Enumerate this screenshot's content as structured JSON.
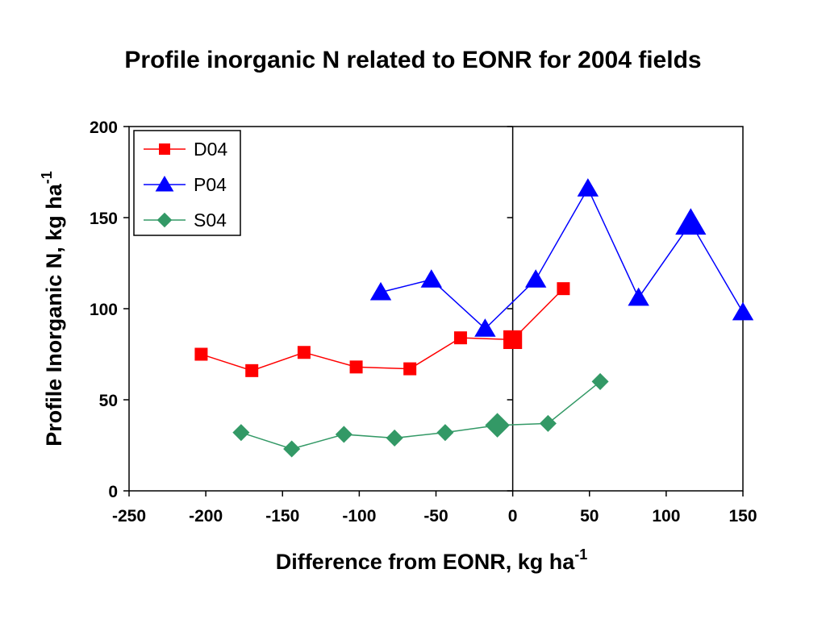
{
  "chart_data": {
    "type": "line",
    "title": "Profile inorganic N related to EONR for 2004 fields",
    "xlabel": {
      "text": "Difference from EONR, kg ha",
      "sup": "-1"
    },
    "ylabel": {
      "text": "Profile Inorganic N, kg ha",
      "sup": "-1"
    },
    "xlim": [
      -250,
      150
    ],
    "ylim": [
      0,
      200
    ],
    "xticks": [
      -250,
      -200,
      -150,
      -100,
      -50,
      0,
      50,
      100,
      150
    ],
    "yticks": [
      0,
      50,
      100,
      150,
      200
    ],
    "xtick_labels": [
      "-250",
      "-200",
      "-150",
      "-100",
      "-50",
      "0",
      "50",
      "100",
      "150"
    ],
    "ytick_labels": [
      "0",
      "50",
      "100",
      "150",
      "200"
    ],
    "grid": false,
    "vertical_reference_line_x": 0,
    "legend_position": "top-left",
    "series": [
      {
        "name": "D04",
        "color": "#ff0000",
        "marker": "square",
        "x": [
          -203,
          -170,
          -136,
          -102,
          -67,
          -34,
          0,
          33
        ],
        "y": [
          75,
          66,
          76,
          68,
          67,
          84,
          83,
          111
        ],
        "large_marker_index": 6
      },
      {
        "name": "P04",
        "color": "#0000ff",
        "marker": "triangle",
        "x": [
          -86,
          -53,
          -18,
          15,
          49,
          82,
          116,
          150
        ],
        "y": [
          109,
          116,
          89,
          116,
          166,
          106,
          147,
          98
        ],
        "large_marker_index": 6
      },
      {
        "name": "S04",
        "color": "#339966",
        "marker": "diamond",
        "x": [
          -177,
          -144,
          -110,
          -77,
          -44,
          -10,
          23,
          57
        ],
        "y": [
          32,
          23,
          31,
          29,
          32,
          36,
          37,
          60
        ],
        "large_marker_index": 5
      }
    ]
  }
}
